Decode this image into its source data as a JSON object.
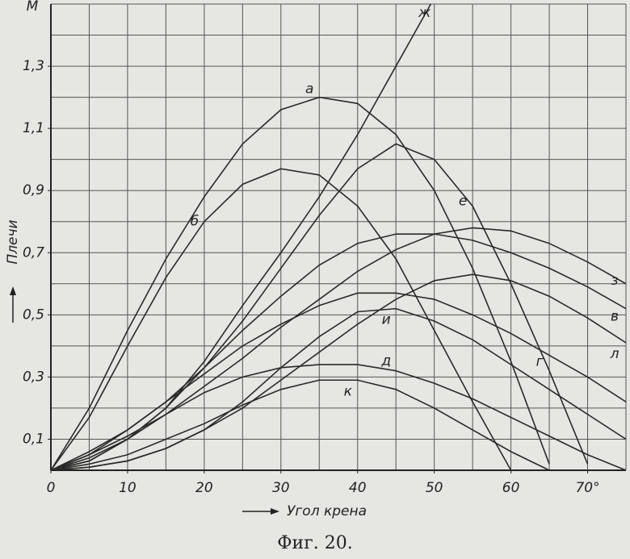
{
  "chart_data": {
    "type": "line",
    "y_axis_label": "M",
    "y_axis_title": "Плечи",
    "x_axis_title": "Угол крена",
    "caption": "Фиг. 20.",
    "x": [
      0,
      5,
      10,
      15,
      20,
      25,
      30,
      35,
      40,
      45,
      50,
      55,
      60,
      65,
      70,
      75
    ],
    "color": "#2a2a2a",
    "grid": true,
    "xlim": [
      0,
      75
    ],
    "ylim": [
      0,
      1.5
    ],
    "xticks": [
      0,
      10,
      20,
      30,
      40,
      50,
      60,
      {
        "value": 70,
        "label": "70°"
      }
    ],
    "yticks": [
      {
        "value": 0.1,
        "label": "0,1"
      },
      {
        "value": 0.3,
        "label": "0,3"
      },
      {
        "value": 0.5,
        "label": "0,5"
      },
      {
        "value": 0.7,
        "label": "0,7"
      },
      {
        "value": 0.9,
        "label": "0,9"
      },
      {
        "value": 1.1,
        "label": "1,1"
      },
      {
        "value": 1.3,
        "label": "1,3"
      }
    ],
    "xgrid": [
      5,
      10,
      15,
      20,
      25,
      30,
      35,
      40,
      45,
      50,
      55,
      60,
      65,
      70,
      75
    ],
    "ygrid": [
      0.1,
      0.2,
      0.3,
      0.4,
      0.5,
      0.6,
      0.7,
      0.8,
      0.9,
      1.0,
      1.1,
      1.2,
      1.3,
      1.4,
      1.5
    ],
    "series": [
      {
        "name": "а",
        "values": [
          0,
          0.2,
          0.45,
          0.68,
          0.88,
          1.05,
          1.16,
          1.2,
          1.18,
          1.08,
          0.9,
          0.65,
          0.35,
          0.02,
          null,
          null
        ]
      },
      {
        "name": "б",
        "values": [
          0,
          0.17,
          0.4,
          0.62,
          0.8,
          0.92,
          0.97,
          0.95,
          0.85,
          0.68,
          0.45,
          0.22,
          0,
          null,
          null,
          null
        ]
      },
      {
        "name": "ж",
        "values": [
          0,
          0.03,
          0.1,
          0.2,
          0.35,
          0.53,
          0.7,
          0.88,
          1.08,
          1.3,
          1.52,
          null,
          null,
          null,
          null,
          null
        ]
      },
      {
        "name": "е",
        "values": [
          0,
          0.03,
          0.1,
          0.2,
          0.33,
          0.48,
          0.65,
          0.82,
          0.97,
          1.05,
          1.0,
          0.85,
          0.6,
          0.32,
          0.02,
          null
        ]
      },
      {
        "name": "з",
        "values": [
          0,
          0.04,
          0.1,
          0.18,
          0.27,
          0.36,
          0.46,
          0.55,
          0.64,
          0.71,
          0.76,
          0.78,
          0.77,
          0.73,
          0.67,
          0.6
        ]
      },
      {
        "name": "в",
        "values": [
          0,
          0.05,
          0.13,
          0.22,
          0.33,
          0.45,
          0.56,
          0.66,
          0.73,
          0.76,
          0.76,
          0.74,
          0.7,
          0.65,
          0.59,
          0.52
        ]
      },
      {
        "name": "г",
        "values": [
          0,
          0.06,
          0.13,
          0.22,
          0.31,
          0.4,
          0.47,
          0.53,
          0.57,
          0.57,
          0.55,
          0.5,
          0.44,
          0.37,
          0.3,
          0.22
        ]
      },
      {
        "name": "л",
        "values": [
          0,
          0.01,
          0.03,
          0.07,
          0.13,
          0.2,
          0.29,
          0.38,
          0.47,
          0.55,
          0.61,
          0.63,
          0.61,
          0.56,
          0.49,
          0.41
        ]
      },
      {
        "name": "и",
        "values": [
          0,
          0.01,
          0.03,
          0.07,
          0.13,
          0.22,
          0.33,
          0.43,
          0.51,
          0.52,
          0.48,
          0.42,
          0.34,
          0.26,
          0.18,
          0.1
        ]
      },
      {
        "name": "д",
        "values": [
          0,
          0.05,
          0.11,
          0.18,
          0.25,
          0.3,
          0.33,
          0.34,
          0.34,
          0.32,
          0.28,
          0.23,
          0.17,
          0.11,
          0.05,
          0
        ]
      },
      {
        "name": "к",
        "values": [
          0,
          0.02,
          0.05,
          0.1,
          0.15,
          0.21,
          0.26,
          0.29,
          0.29,
          0.26,
          0.2,
          0.13,
          0.06,
          0,
          null,
          null
        ]
      }
    ]
  }
}
